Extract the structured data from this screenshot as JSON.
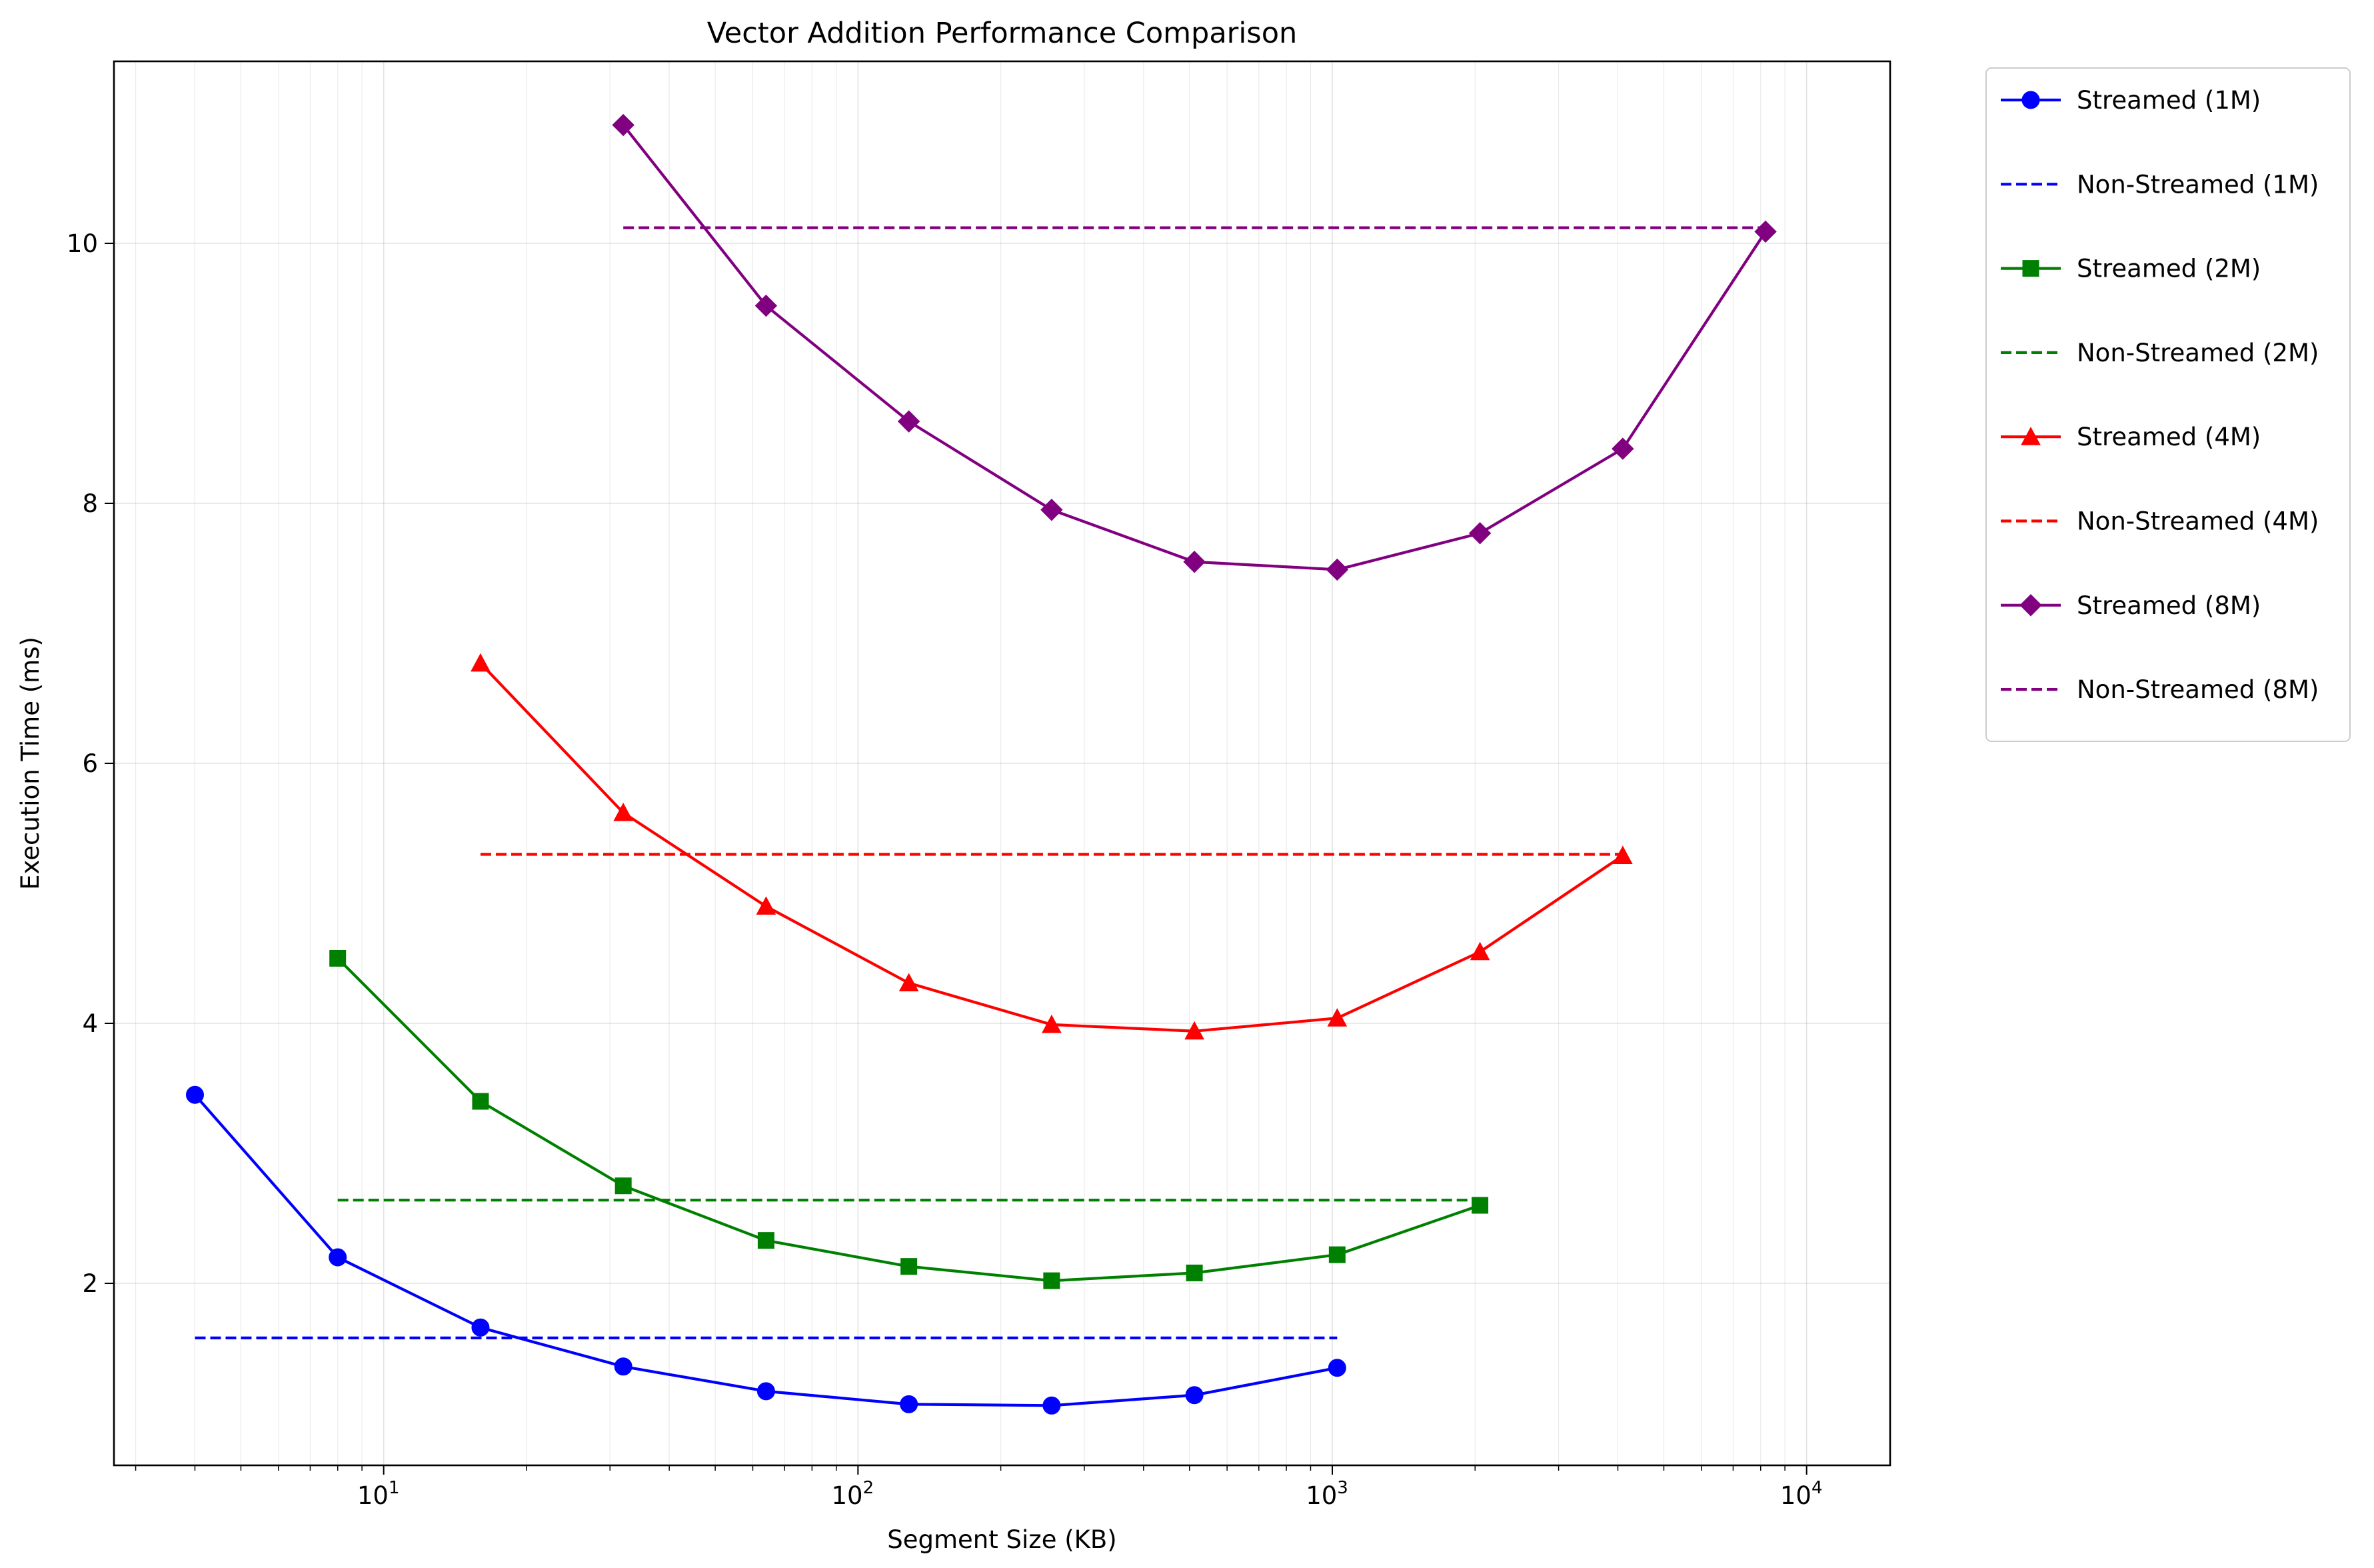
{
  "chart_data": {
    "type": "line",
    "title": "Vector Addition Performance Comparison",
    "xlabel": "Segment Size (KB)",
    "ylabel": "Execution Time (ms)",
    "xscale": "log",
    "xlim": [
      2.7,
      15000
    ],
    "ylim": [
      0.6,
      11.4
    ],
    "grid": true,
    "legend_position": "outside-top-right",
    "x_ticks": [
      {
        "value": 10,
        "base": "10",
        "exp": "1"
      },
      {
        "value": 100,
        "base": "10",
        "exp": "2"
      },
      {
        "value": 1000,
        "base": "10",
        "exp": "3"
      },
      {
        "value": 10000,
        "base": "10",
        "exp": "4"
      }
    ],
    "y_ticks": [
      {
        "value": 2,
        "label": "2"
      },
      {
        "value": 4,
        "label": "4"
      },
      {
        "value": 6,
        "label": "6"
      },
      {
        "value": 8,
        "label": "8"
      },
      {
        "value": 10,
        "label": "10"
      }
    ],
    "series": [
      {
        "name": "Streamed (1M)",
        "style": "solid",
        "marker": "circle",
        "color": "#0000ff",
        "x": [
          4,
          8,
          16,
          32,
          64,
          128,
          256,
          512,
          1024
        ],
        "values": [
          3.45,
          2.2,
          1.66,
          1.36,
          1.17,
          1.07,
          1.06,
          1.14,
          1.35
        ]
      },
      {
        "name": "Non-Streamed (1M)",
        "style": "dashed",
        "marker": "none",
        "color": "#0000ff",
        "x": [
          4,
          1024
        ],
        "values": [
          1.58,
          1.58
        ]
      },
      {
        "name": "Streamed (2M)",
        "style": "solid",
        "marker": "square",
        "color": "#008000",
        "x": [
          8,
          16,
          32,
          64,
          128,
          256,
          512,
          1024,
          2048
        ],
        "values": [
          4.5,
          3.4,
          2.75,
          2.33,
          2.13,
          2.02,
          2.08,
          2.22,
          2.6
        ]
      },
      {
        "name": "Non-Streamed (2M)",
        "style": "dashed",
        "marker": "none",
        "color": "#008000",
        "x": [
          8,
          2048
        ],
        "values": [
          2.64,
          2.64
        ]
      },
      {
        "name": "Streamed (4M)",
        "style": "solid",
        "marker": "triangle",
        "color": "#ff0000",
        "x": [
          16,
          32,
          64,
          128,
          256,
          512,
          1024,
          2048,
          4096
        ],
        "values": [
          6.77,
          5.62,
          4.9,
          4.31,
          3.99,
          3.94,
          4.04,
          4.55,
          5.29
        ]
      },
      {
        "name": "Non-Streamed (4M)",
        "style": "dashed",
        "marker": "none",
        "color": "#ff0000",
        "x": [
          16,
          4096
        ],
        "values": [
          5.3,
          5.3
        ]
      },
      {
        "name": "Streamed (8M)",
        "style": "solid",
        "marker": "diamond",
        "color": "#800080",
        "x": [
          32,
          64,
          128,
          256,
          512,
          1024,
          2048,
          4096,
          8192
        ],
        "values": [
          10.91,
          9.52,
          8.63,
          7.95,
          7.55,
          7.49,
          7.77,
          8.42,
          10.09
        ]
      },
      {
        "name": "Non-Streamed (8M)",
        "style": "dashed",
        "marker": "none",
        "color": "#800080",
        "x": [
          32,
          8192
        ],
        "values": [
          10.12,
          10.12
        ]
      }
    ]
  }
}
